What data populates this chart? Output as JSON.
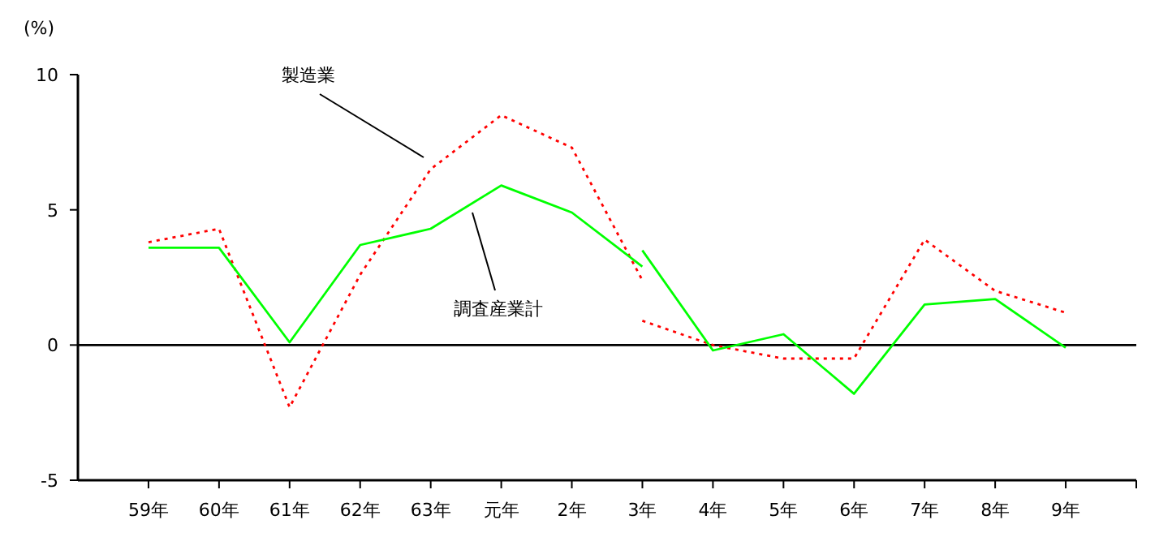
{
  "chart_data": {
    "type": "line",
    "ylabel": "(%)",
    "categories": [
      "59年",
      "60年",
      "61年",
      "62年",
      "63年",
      "元年",
      "2年",
      "3年",
      "4年",
      "5年",
      "6年",
      "7年",
      "8年",
      "9年"
    ],
    "ylim": [
      -5,
      10
    ],
    "yticks": [
      -5,
      0,
      5,
      10
    ],
    "grid": false,
    "ref_lines": [
      {
        "axis": "y",
        "value": 0,
        "color": "#000000"
      }
    ],
    "series": [
      {
        "color": "#ff0000",
        "line_style": "dotted",
        "values": [
          3.8,
          4.3,
          -2.3,
          2.6,
          6.5,
          8.5,
          7.3,
          2.4,
          null,
          null,
          null,
          null,
          null,
          null
        ]
      },
      {
        "color": "#ff0000",
        "line_style": "dotted",
        "values": [
          null,
          null,
          null,
          null,
          null,
          null,
          null,
          0.9,
          0.0,
          -0.5,
          -0.5,
          3.9,
          2.0,
          1.2
        ]
      },
      {
        "color": "#00ff00",
        "line_style": "solid",
        "values": [
          3.6,
          3.6,
          0.1,
          3.7,
          4.3,
          5.9,
          4.9,
          2.9,
          null,
          null,
          null,
          null,
          null,
          null
        ]
      },
      {
        "color": "#00ff00",
        "line_style": "solid",
        "values": [
          null,
          null,
          null,
          null,
          null,
          null,
          null,
          3.5,
          -0.2,
          0.4,
          -1.8,
          1.5,
          1.7,
          -0.1
        ]
      }
    ],
    "annotations": [
      "製造業",
      "調査産業計"
    ]
  }
}
